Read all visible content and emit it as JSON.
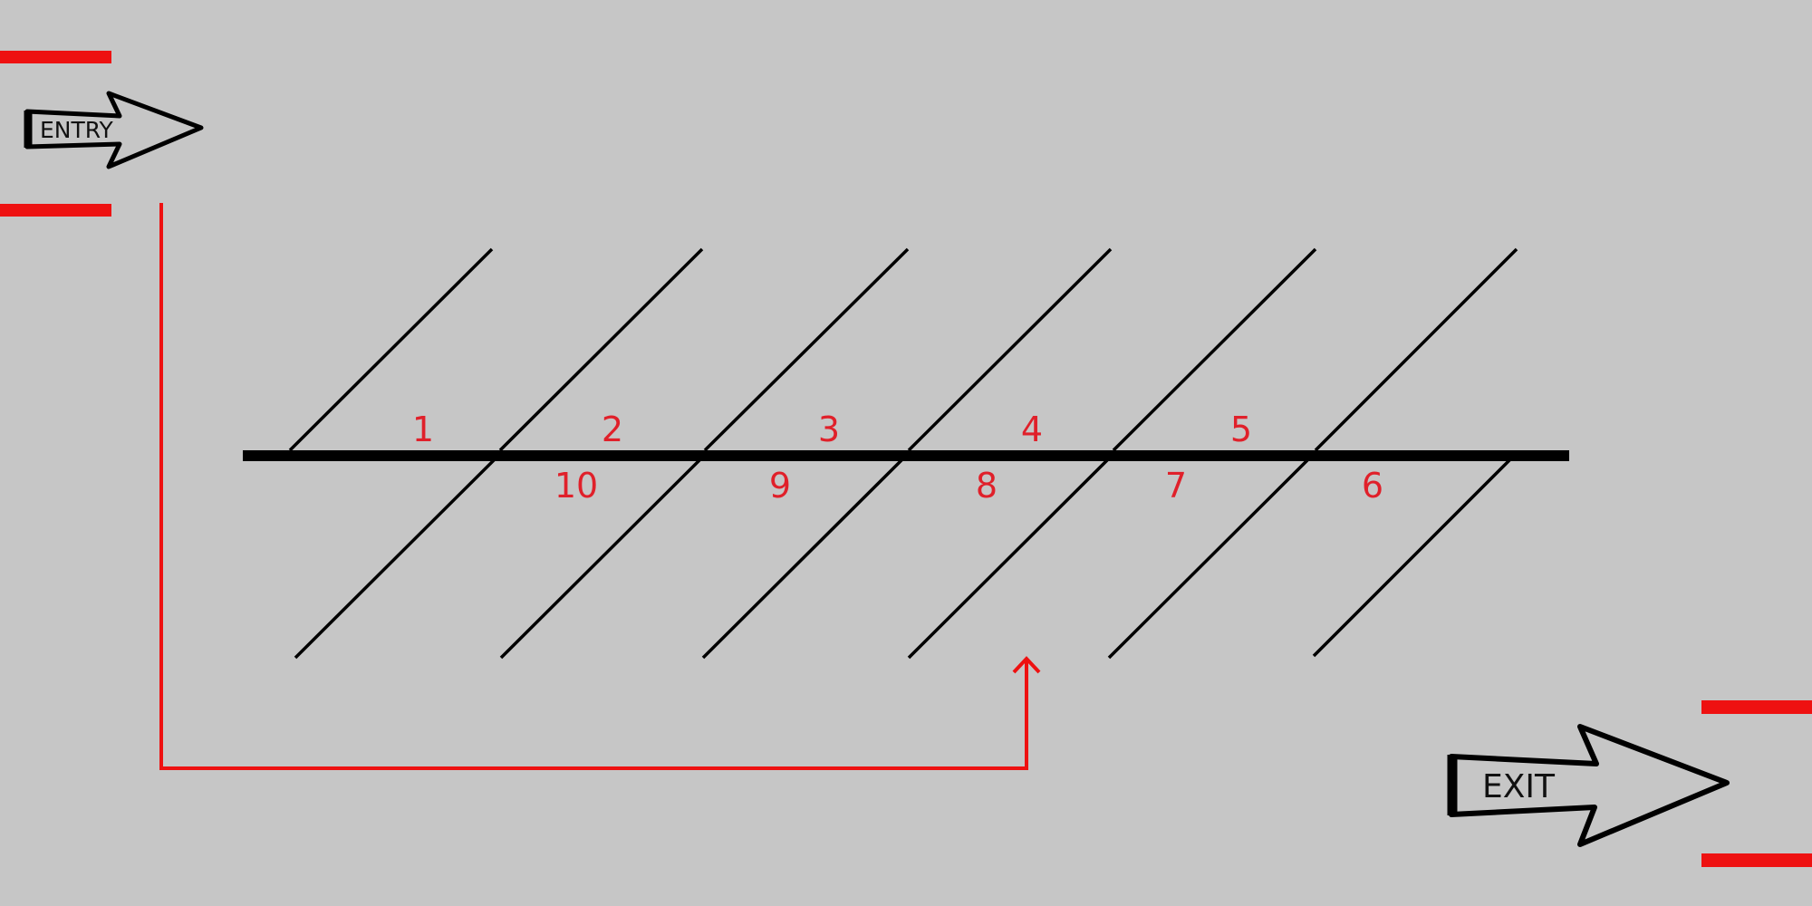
{
  "colors": {
    "background": "#c6c6c6",
    "route": "#ee1111",
    "lines": "#000000",
    "spot_numbers": "#e0202a"
  },
  "signs": {
    "entry": {
      "label": "ENTRY"
    },
    "exit": {
      "label": "EXIT"
    }
  },
  "spots": {
    "top_row": [
      "1",
      "2",
      "3",
      "4",
      "5"
    ],
    "bottom_row": [
      "10",
      "9",
      "8",
      "7",
      "6"
    ]
  }
}
